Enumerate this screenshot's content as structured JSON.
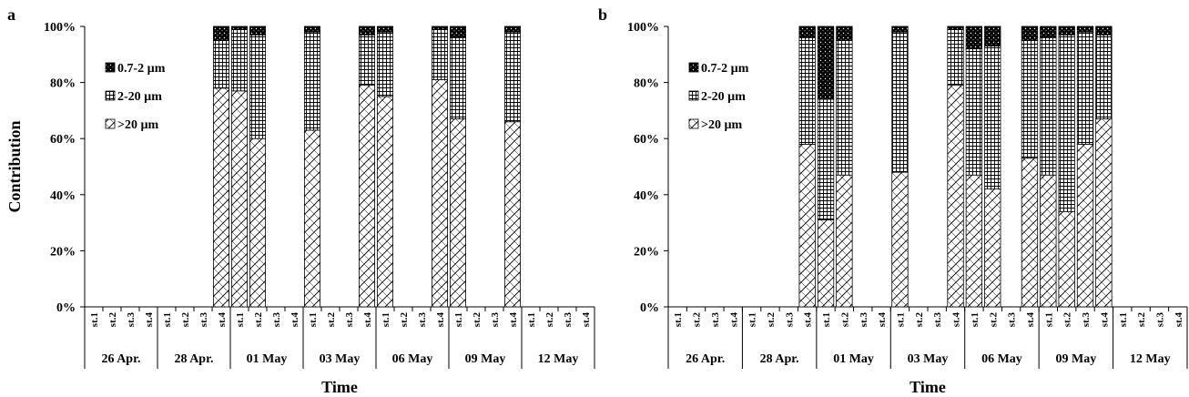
{
  "chart_data": [
    {
      "panel": "a",
      "type": "bar",
      "stacked": true,
      "ylabel": "Contribution",
      "xlabel": "Time",
      "ylim": [
        0,
        100
      ],
      "y_ticks": [
        "0%",
        "20%",
        "40%",
        "60%",
        "80%",
        "100%"
      ],
      "groups": [
        "26 Apr.",
        "28 Apr.",
        "01 May",
        "03 May",
        "06 May",
        "09 May",
        "12 May"
      ],
      "stations": [
        "st.1",
        "st.2",
        "st.3",
        "st.4"
      ],
      "legend": [
        "0.7-2 µm",
        "2-20 µm",
        ">20 µm"
      ],
      "legend_position": "top-left",
      "series": [
        {
          "name": ">20 µm",
          "pattern": "diag",
          "values": [
            null,
            null,
            null,
            null,
            null,
            null,
            null,
            78,
            77,
            60,
            null,
            null,
            63,
            null,
            null,
            79,
            75,
            null,
            null,
            81,
            67,
            null,
            null,
            66,
            null,
            null,
            null,
            null
          ]
        },
        {
          "name": "2-20 µm",
          "pattern": "grid",
          "values": [
            null,
            null,
            null,
            null,
            null,
            null,
            null,
            17,
            22,
            37,
            null,
            null,
            35,
            null,
            null,
            18,
            23,
            null,
            null,
            18,
            29,
            null,
            null,
            32,
            null,
            null,
            null,
            null
          ]
        },
        {
          "name": "0.7-2 µm",
          "pattern": "dots",
          "values": [
            null,
            null,
            null,
            null,
            null,
            null,
            null,
            5,
            1,
            3,
            null,
            null,
            2,
            null,
            null,
            3,
            2,
            null,
            null,
            1,
            4,
            null,
            null,
            2,
            null,
            null,
            null,
            null
          ]
        }
      ]
    },
    {
      "panel": "b",
      "type": "bar",
      "stacked": true,
      "ylabel": "",
      "xlabel": "Time",
      "ylim": [
        0,
        100
      ],
      "y_ticks": [
        "0%",
        "20%",
        "40%",
        "60%",
        "80%",
        "100%"
      ],
      "groups": [
        "26 Apr.",
        "28 Apr.",
        "01 May",
        "03 May",
        "06 May",
        "09 May",
        "12 May"
      ],
      "stations": [
        "st.1",
        "st.2",
        "st.3",
        "st.4"
      ],
      "legend": [
        "0.7-2 µm",
        "2-20 µm",
        ">20 µm"
      ],
      "legend_position": "top-left",
      "series": [
        {
          "name": ">20 µm",
          "pattern": "diag",
          "values": [
            null,
            null,
            null,
            null,
            null,
            null,
            null,
            58,
            31,
            47,
            null,
            null,
            48,
            null,
            null,
            79,
            47,
            42,
            null,
            53,
            47,
            34,
            58,
            67,
            null,
            null,
            null,
            null
          ]
        },
        {
          "name": "2-20 µm",
          "pattern": "grid",
          "values": [
            null,
            null,
            null,
            null,
            null,
            null,
            null,
            38,
            43,
            48,
            null,
            null,
            50,
            null,
            null,
            20,
            45,
            51,
            null,
            42,
            49,
            63,
            40,
            30,
            null,
            null,
            null,
            null
          ]
        },
        {
          "name": "0.7-2 µm",
          "pattern": "dots",
          "values": [
            null,
            null,
            null,
            null,
            null,
            null,
            null,
            4,
            26,
            5,
            null,
            null,
            2,
            null,
            null,
            1,
            8,
            7,
            null,
            5,
            4,
            3,
            2,
            3,
            null,
            null,
            null,
            null
          ]
        }
      ]
    }
  ]
}
